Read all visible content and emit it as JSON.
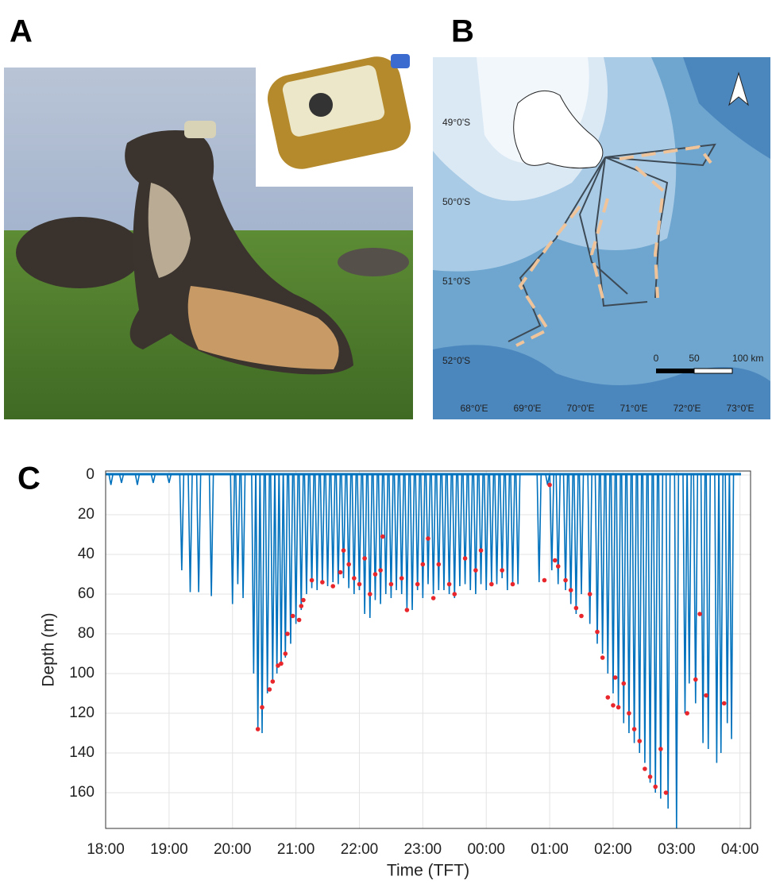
{
  "panels": {
    "a": {
      "label": "A"
    },
    "b": {
      "label": "B",
      "lat_labels": [
        "49°0'S",
        "50°0'S",
        "51°0'S",
        "52°0'S"
      ],
      "lon_labels": [
        "68°0'E",
        "69°0'E",
        "70°0'E",
        "71°0'E",
        "72°0'E",
        "73°0'E"
      ],
      "scale_labels": [
        "0",
        "50",
        "100 km"
      ]
    },
    "c": {
      "label": "C"
    }
  },
  "chart_data": {
    "type": "line",
    "x_label": "Time (TFT)",
    "y_label": "Depth (m)",
    "xlim": [
      "18:00",
      "04:10"
    ],
    "xticks": [
      "18:00",
      "19:00",
      "20:00",
      "21:00",
      "22:00",
      "23:00",
      "00:00",
      "01:00",
      "02:00",
      "03:00",
      "04:00"
    ],
    "ylim": [
      -2,
      178
    ],
    "yticks": [
      0,
      20,
      40,
      60,
      80,
      100,
      120,
      140,
      160
    ],
    "y_inverted": true,
    "grid": true,
    "series": [
      {
        "type": "spike",
        "color": "#0072bd",
        "x": [
          "18:05",
          "18:15",
          "18:30",
          "18:45",
          "19:00",
          "19:12",
          "19:20",
          "19:28",
          "19:40",
          "20:00",
          "20:05",
          "20:10",
          "20:20",
          "20:24",
          "20:28",
          "20:33",
          "20:38",
          "20:42",
          "20:46",
          "20:50",
          "20:55",
          "21:00",
          "21:05",
          "21:10",
          "21:15",
          "21:20",
          "21:25",
          "21:30",
          "21:35",
          "21:40",
          "21:45",
          "21:50",
          "21:55",
          "22:00",
          "22:05",
          "22:10",
          "22:15",
          "22:20",
          "22:25",
          "22:30",
          "22:35",
          "22:40",
          "22:45",
          "22:50",
          "22:55",
          "23:00",
          "23:05",
          "23:10",
          "23:15",
          "23:20",
          "23:25",
          "23:30",
          "23:35",
          "23:40",
          "23:45",
          "23:50",
          "23:55",
          "00:00",
          "00:05",
          "00:10",
          "00:15",
          "00:20",
          "00:25",
          "00:30",
          "00:50",
          "00:58",
          "01:02",
          "01:08",
          "01:15",
          "01:20",
          "01:25",
          "01:30",
          "01:38",
          "01:45",
          "01:50",
          "01:55",
          "02:00",
          "02:05",
          "02:10",
          "02:15",
          "02:20",
          "02:25",
          "02:30",
          "02:35",
          "02:40",
          "02:45",
          "02:52",
          "03:00",
          "03:08",
          "03:12",
          "03:18",
          "03:25",
          "03:30",
          "03:38",
          "03:42",
          "03:48",
          "03:52"
        ],
        "values": [
          5,
          4,
          5,
          4,
          4,
          48,
          59,
          59,
          61,
          65,
          55,
          62,
          100,
          128,
          130,
          110,
          105,
          100,
          95,
          92,
          85,
          75,
          68,
          60,
          57,
          58,
          55,
          56,
          54,
          55,
          52,
          57,
          60,
          58,
          70,
          72,
          63,
          65,
          60,
          62,
          58,
          60,
          68,
          68,
          58,
          62,
          55,
          60,
          58,
          58,
          60,
          62,
          56,
          55,
          58,
          60,
          55,
          58,
          54,
          55,
          52,
          58,
          55,
          55,
          54,
          5,
          48,
          55,
          58,
          65,
          70,
          60,
          75,
          85,
          90,
          100,
          110,
          118,
          125,
          130,
          135,
          140,
          145,
          155,
          160,
          163,
          168,
          178,
          120,
          105,
          115,
          135,
          138,
          145,
          140,
          125,
          133
        ]
      },
      {
        "type": "scatter",
        "color": "#e8262b",
        "x": [
          "20:24",
          "20:28",
          "20:35",
          "20:38",
          "20:43",
          "20:46",
          "20:50",
          "20:52",
          "20:57",
          "21:03",
          "21:05",
          "21:07",
          "21:15",
          "21:25",
          "21:35",
          "21:42",
          "21:45",
          "21:50",
          "21:55",
          "22:00",
          "22:05",
          "22:10",
          "22:15",
          "22:20",
          "22:22",
          "22:30",
          "22:40",
          "22:45",
          "22:55",
          "23:00",
          "23:05",
          "23:10",
          "23:15",
          "23:25",
          "23:30",
          "23:40",
          "23:50",
          "23:55",
          "00:05",
          "00:15",
          "00:25",
          "00:55",
          "01:00",
          "01:05",
          "01:08",
          "01:15",
          "01:20",
          "01:25",
          "01:30",
          "01:38",
          "01:45",
          "01:50",
          "01:55",
          "02:00",
          "02:02",
          "02:05",
          "02:10",
          "02:15",
          "02:20",
          "02:25",
          "02:30",
          "02:35",
          "02:40",
          "02:45",
          "02:50",
          "03:10",
          "03:18",
          "03:22",
          "03:28",
          "03:45"
        ],
        "values": [
          128,
          117,
          108,
          104,
          96,
          95,
          90,
          80,
          71,
          73,
          66,
          63,
          53,
          54,
          56,
          49,
          38,
          45,
          52,
          55,
          42,
          60,
          50,
          48,
          31,
          55,
          52,
          68,
          55,
          45,
          32,
          62,
          45,
          55,
          60,
          42,
          48,
          38,
          55,
          48,
          55,
          53,
          5,
          43,
          46,
          53,
          58,
          67,
          71,
          60,
          79,
          92,
          112,
          116,
          102,
          117,
          105,
          120,
          128,
          134,
          148,
          152,
          157,
          138,
          160,
          120,
          103,
          70,
          111,
          115
        ]
      }
    ]
  }
}
